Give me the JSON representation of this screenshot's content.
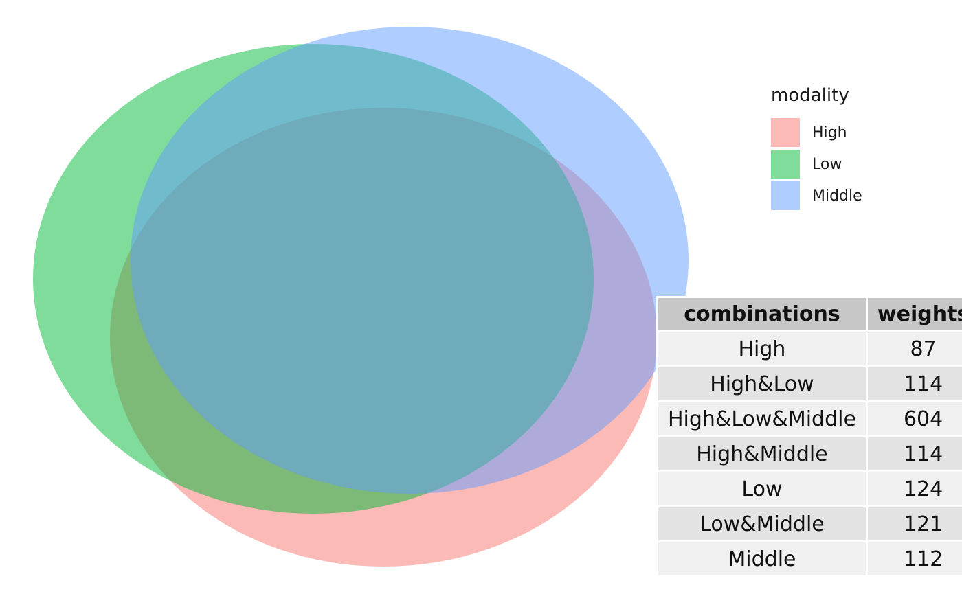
{
  "chart_data": {
    "type": "venn",
    "sets": [
      "High",
      "Low",
      "Middle"
    ],
    "legend": {
      "title": "modality",
      "position": "right",
      "entries": [
        {
          "label": "High",
          "color": "#F8766D"
        },
        {
          "label": "Low",
          "color": "#00BA38"
        },
        {
          "label": "Middle",
          "color": "#619CFF"
        }
      ]
    },
    "table": {
      "columns": [
        "combinations",
        "weights"
      ],
      "rows": [
        {
          "combination": "High",
          "weight": "87"
        },
        {
          "combination": "High&Low",
          "weight": "114"
        },
        {
          "combination": "High&Low&Middle",
          "weight": "604"
        },
        {
          "combination": "High&Middle",
          "weight": "114"
        },
        {
          "combination": "Low",
          "weight": "124"
        },
        {
          "combination": "Low&Middle",
          "weight": "121"
        },
        {
          "combination": "Middle",
          "weight": "112"
        }
      ]
    },
    "fill_alpha": 0.5
  }
}
